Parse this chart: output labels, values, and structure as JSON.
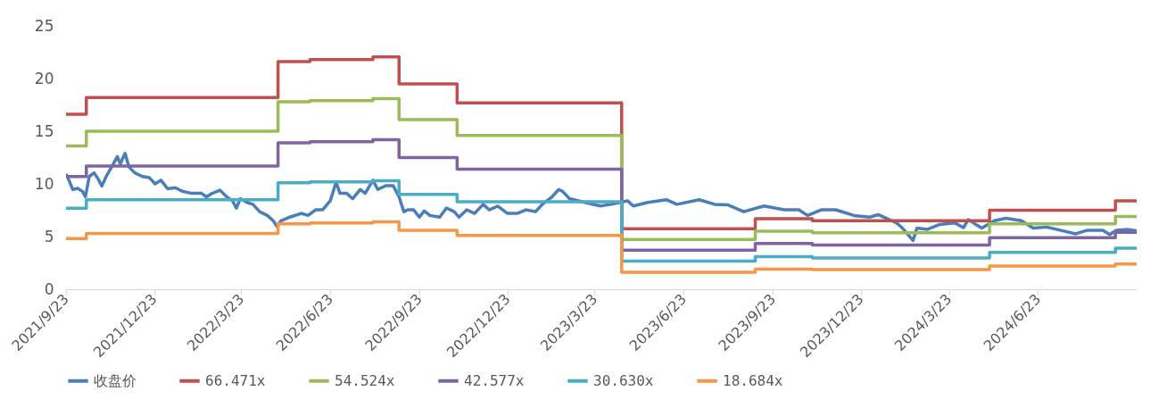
{
  "chart_data": {
    "type": "line",
    "xlim": [
      "2021-09-23",
      "2024-10-03"
    ],
    "xticks": [
      {
        "value": "2021-09-23",
        "label": "2021/9/23"
      },
      {
        "value": "2021-12-23",
        "label": "2021/12/23"
      },
      {
        "value": "2022-03-23",
        "label": "2022/3/23"
      },
      {
        "value": "2022-06-23",
        "label": "2022/6/23"
      },
      {
        "value": "2022-09-23",
        "label": "2022/9/23"
      },
      {
        "value": "2022-12-23",
        "label": "2022/12/23"
      },
      {
        "value": "2023-03-23",
        "label": "2023/3/23"
      },
      {
        "value": "2023-06-23",
        "label": "2023/6/23"
      },
      {
        "value": "2023-09-23",
        "label": "2023/9/23"
      },
      {
        "value": "2023-12-23",
        "label": "2023/12/23"
      },
      {
        "value": "2024-03-23",
        "label": "2024/3/23"
      },
      {
        "value": "2024-06-23",
        "label": "2024/6/23"
      }
    ],
    "ylim": [
      0,
      25
    ],
    "yticks": [
      0,
      5,
      10,
      15,
      20,
      25
    ],
    "grid": false,
    "legend": "bottom",
    "series": [
      {
        "name": "收盘价",
        "color": "#4a7ebb",
        "x": [
          "2021-09-23",
          "2021-09-26",
          "2021-09-30",
          "2021-10-05",
          "2021-10-10",
          "2021-10-13",
          "2021-10-17",
          "2021-10-22",
          "2021-10-26",
          "2021-10-30",
          "2021-11-04",
          "2021-11-10",
          "2021-11-15",
          "2021-11-18",
          "2021-11-23",
          "2021-11-27",
          "2021-12-03",
          "2021-12-11",
          "2021-12-18",
          "2021-12-24",
          "2021-12-30",
          "2022-01-06",
          "2022-01-14",
          "2022-01-21",
          "2022-01-31",
          "2022-02-10",
          "2022-02-15",
          "2022-02-21",
          "2022-03-01",
          "2022-03-08",
          "2022-03-14",
          "2022-03-18",
          "2022-03-22",
          "2022-03-29",
          "2022-04-04",
          "2022-04-11",
          "2022-04-19",
          "2022-04-25",
          "2022-04-29",
          "2022-05-03",
          "2022-05-12",
          "2022-05-24",
          "2022-05-31",
          "2022-06-08",
          "2022-06-15",
          "2022-06-23",
          "2022-06-29",
          "2022-07-03",
          "2022-07-10",
          "2022-07-16",
          "2022-07-24",
          "2022-07-29",
          "2022-08-06",
          "2022-08-11",
          "2022-08-19",
          "2022-08-27",
          "2022-09-02",
          "2022-09-07",
          "2022-09-11",
          "2022-09-17",
          "2022-09-23",
          "2022-09-28",
          "2022-10-04",
          "2022-10-14",
          "2022-10-21",
          "2022-10-29",
          "2022-11-03",
          "2022-11-11",
          "2022-11-19",
          "2022-11-28",
          "2022-12-04",
          "2022-12-13",
          "2022-12-23",
          "2023-01-02",
          "2023-01-11",
          "2023-01-21",
          "2023-01-28",
          "2023-02-07",
          "2023-02-14",
          "2023-02-18",
          "2023-02-25",
          "2023-03-13",
          "2023-03-29",
          "2023-04-09",
          "2023-04-19",
          "2023-04-26",
          "2023-05-02",
          "2023-05-17",
          "2023-06-05",
          "2023-06-16",
          "2023-07-09",
          "2023-07-25",
          "2023-08-08",
          "2023-08-24",
          "2023-09-14",
          "2023-10-05",
          "2023-10-20",
          "2023-10-29",
          "2023-11-12",
          "2023-11-27",
          "2023-12-16",
          "2024-01-01",
          "2024-01-10",
          "2024-01-20",
          "2024-01-29",
          "2024-02-04",
          "2024-02-15",
          "2024-02-19",
          "2024-03-01",
          "2024-03-13",
          "2024-03-29",
          "2024-04-07",
          "2024-04-12",
          "2024-04-26",
          "2024-05-09",
          "2024-05-21",
          "2024-06-06",
          "2024-06-18",
          "2024-07-02",
          "2024-07-16",
          "2024-08-01",
          "2024-08-13",
          "2024-08-29",
          "2024-09-05",
          "2024-09-12",
          "2024-09-23",
          "2024-10-03"
        ],
        "values": [
          10.95,
          10.35,
          9.47,
          9.57,
          9.29,
          8.77,
          10.7,
          11.05,
          10.5,
          9.8,
          10.8,
          11.75,
          12.6,
          11.9,
          12.9,
          11.6,
          11.05,
          10.7,
          10.6,
          10.0,
          10.35,
          9.54,
          9.64,
          9.3,
          9.1,
          9.1,
          8.77,
          9.1,
          9.4,
          8.77,
          8.4,
          7.7,
          8.6,
          8.24,
          8.06,
          7.36,
          7.0,
          6.5,
          5.96,
          6.5,
          6.84,
          7.2,
          7.0,
          7.54,
          7.54,
          8.4,
          10.17,
          9.1,
          9.1,
          8.6,
          9.47,
          9.1,
          10.35,
          9.47,
          9.82,
          9.82,
          8.77,
          7.36,
          7.54,
          7.54,
          6.84,
          7.43,
          7.0,
          6.84,
          7.71,
          7.36,
          6.84,
          7.54,
          7.2,
          8.06,
          7.54,
          7.89,
          7.2,
          7.2,
          7.54,
          7.36,
          8.06,
          8.77,
          9.47,
          9.29,
          8.6,
          8.24,
          7.9,
          8.06,
          8.24,
          8.4,
          7.9,
          8.24,
          8.5,
          8.06,
          8.5,
          8.06,
          8.0,
          7.36,
          7.9,
          7.54,
          7.54,
          7.0,
          7.54,
          7.54,
          7.0,
          6.84,
          7.08,
          6.66,
          6.3,
          5.8,
          4.63,
          5.8,
          5.68,
          6.14,
          6.3,
          5.85,
          6.6,
          5.8,
          6.5,
          6.73,
          6.5,
          5.8,
          5.9,
          5.6,
          5.26,
          5.6,
          5.6,
          5.19,
          5.6,
          5.68,
          5.54
        ]
      },
      {
        "name": "66.471x",
        "color": "#c0504d",
        "type": "step",
        "values": [
          16.6,
          18.2,
          21.6,
          21.8,
          22.05,
          19.5,
          17.7,
          5.75,
          6.7,
          6.5,
          7.5,
          8.4,
          8.4
        ]
      },
      {
        "name": "54.524x",
        "color": "#9bbb59",
        "type": "step",
        "values": [
          13.6,
          15.0,
          17.8,
          17.9,
          18.1,
          16.1,
          14.6,
          4.73,
          5.5,
          5.35,
          6.2,
          6.9,
          6.9
        ]
      },
      {
        "name": "42.577x",
        "color": "#8064a2",
        "type": "step",
        "values": [
          10.7,
          11.7,
          13.9,
          14.0,
          14.2,
          12.5,
          11.4,
          3.7,
          4.35,
          4.2,
          4.9,
          5.4,
          5.4
        ]
      },
      {
        "name": "30.630x",
        "color": "#4bacc6",
        "type": "step",
        "values": [
          7.7,
          8.5,
          10.1,
          10.2,
          10.3,
          9.0,
          8.3,
          2.66,
          3.1,
          2.97,
          3.5,
          3.9,
          3.9
        ]
      },
      {
        "name": "18.684x",
        "color": "#f79646",
        "type": "step",
        "values": [
          4.8,
          5.3,
          6.2,
          6.3,
          6.4,
          5.6,
          5.1,
          1.6,
          1.9,
          1.86,
          2.2,
          2.4,
          2.4
        ]
      }
    ],
    "x": [
      "2021-09-23",
      "2021-10-14",
      "2022-04-30",
      "2022-06-02",
      "2022-08-06",
      "2022-09-02",
      "2022-11-01",
      "2023-04-20",
      "2023-09-05",
      "2023-11-03",
      "2024-05-04",
      "2024-09-11",
      "2024-10-03"
    ]
  }
}
